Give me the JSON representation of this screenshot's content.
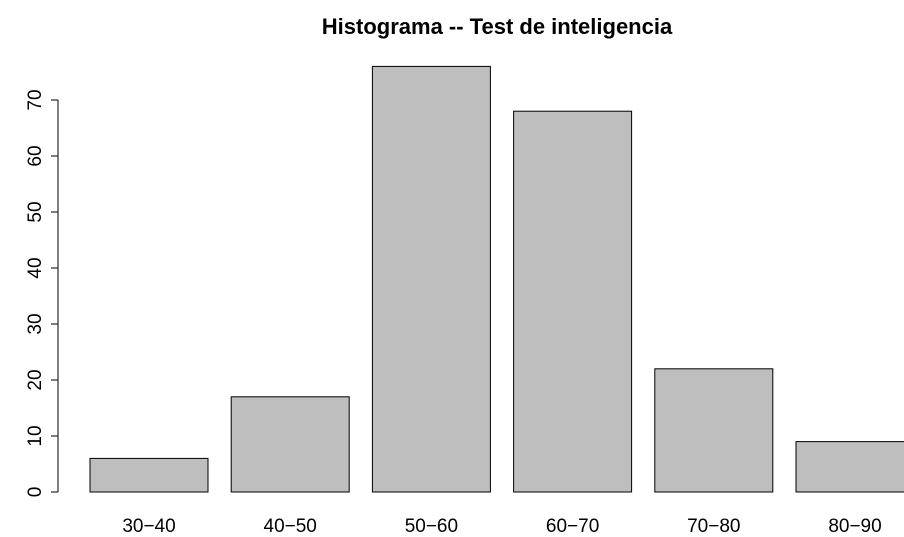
{
  "chart_data": {
    "type": "bar",
    "title": "Histograma -- Test de inteligencia",
    "categories": [
      "30−40",
      "40−50",
      "50−60",
      "60−70",
      "70−80",
      "80−90"
    ],
    "values": [
      6,
      17,
      76,
      68,
      22,
      9
    ],
    "color": "#bebebe",
    "ylim": [
      0,
      76
    ],
    "yticks": [
      0,
      10,
      20,
      30,
      40,
      50,
      60,
      70
    ],
    "grid": false
  }
}
